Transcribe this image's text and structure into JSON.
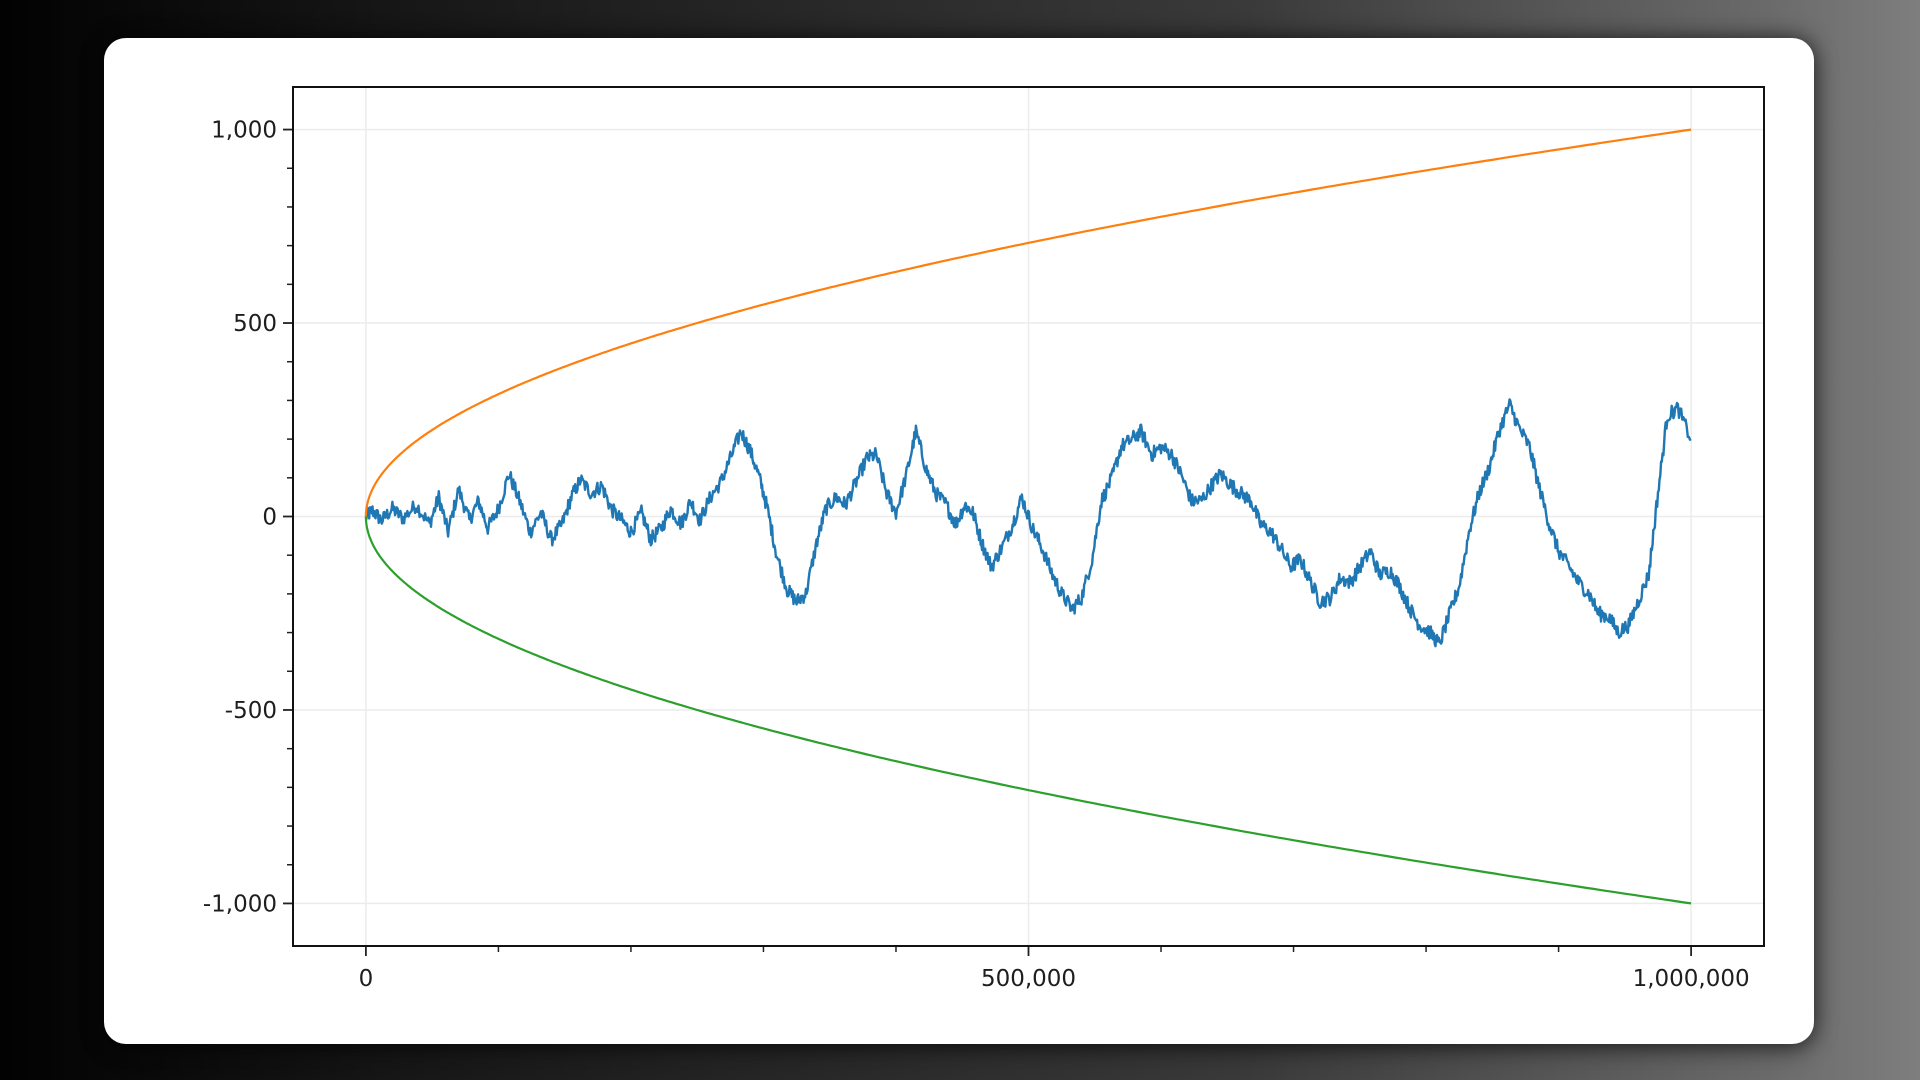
{
  "chart_data": {
    "type": "line",
    "title": "",
    "xlabel": "",
    "ylabel": "",
    "xlim": [
      -55000,
      1055000
    ],
    "ylim": [
      -1110,
      1110
    ],
    "grid": true,
    "legend": "none",
    "x_ticks": [
      0,
      500000,
      1000000
    ],
    "x_tick_labels": [
      "0",
      "500,000",
      "1,000,000"
    ],
    "y_ticks": [
      1000,
      500,
      0,
      -500,
      -1000
    ],
    "y_tick_labels": [
      "1,000",
      "500",
      "0",
      "-500",
      "-1,000"
    ],
    "series": [
      {
        "color": "#1f77b4",
        "x": [
          0,
          5000,
          12000,
          20000,
          28000,
          38000,
          48000,
          55000,
          62000,
          70000,
          78000,
          85000,
          92000,
          100000,
          108000,
          116000,
          124000,
          132000,
          140000,
          148000,
          155000,
          162000,
          170000,
          178000,
          185000,
          193000,
          200000,
          208000,
          215000,
          223000,
          230000,
          238000,
          245000,
          252000,
          260000,
          268000,
          275000,
          283000,
          290000,
          297000,
          303000,
          310000,
          318000,
          325000,
          332000,
          340000,
          347000,
          355000,
          362000,
          370000,
          378000,
          385000,
          393000,
          400000,
          408000,
          415000,
          423000,
          430000,
          438000,
          445000,
          452000,
          458000,
          465000,
          472000,
          480000,
          488000,
          495000,
          503000,
          510000,
          518000,
          525000,
          533000,
          540000,
          548000,
          555000,
          563000,
          570000,
          578000,
          585000,
          593000,
          600000,
          608000,
          615000,
          623000,
          630000,
          638000,
          645000,
          653000,
          660000,
          668000,
          675000,
          683000,
          690000,
          698000,
          705000,
          713000,
          720000,
          728000,
          735000,
          743000,
          750000,
          758000,
          765000,
          773000,
          780000,
          788000,
          795000,
          803000,
          810000,
          818000,
          825000,
          833000,
          840000,
          848000,
          855000,
          863000,
          870000,
          878000,
          885000,
          893000,
          900000,
          908000,
          915000,
          923000,
          930000,
          938000,
          945000,
          953000,
          960000,
          968000,
          975000,
          982000,
          990000,
          1000000
        ],
        "y": [
          0,
          15,
          -10,
          20,
          -5,
          30,
          -20,
          50,
          -40,
          70,
          -10,
          40,
          -30,
          20,
          110,
          40,
          -40,
          10,
          -60,
          -20,
          50,
          95,
          60,
          80,
          20,
          -10,
          -40,
          10,
          -60,
          -30,
          20,
          -20,
          40,
          -10,
          50,
          90,
          150,
          220,
          170,
          100,
          20,
          -100,
          -190,
          -220,
          -200,
          -70,
          20,
          50,
          30,
          90,
          150,
          160,
          60,
          10,
          110,
          220,
          120,
          60,
          30,
          -20,
          30,
          10,
          -70,
          -130,
          -80,
          -20,
          50,
          -30,
          -80,
          -150,
          -200,
          -240,
          -210,
          -110,
          40,
          100,
          180,
          200,
          220,
          160,
          180,
          160,
          110,
          40,
          40,
          80,
          110,
          80,
          60,
          40,
          -20,
          -40,
          -80,
          -130,
          -110,
          -170,
          -220,
          -210,
          -160,
          -170,
          -130,
          -90,
          -150,
          -140,
          -180,
          -240,
          -280,
          -300,
          -330,
          -250,
          -180,
          -30,
          60,
          130,
          220,
          290,
          230,
          180,
          80,
          -20,
          -90,
          -130,
          -170,
          -200,
          -250,
          -260,
          -300,
          -280,
          -220,
          -150,
          60,
          260,
          280,
          200
        ]
      },
      {
        "color": "#ff7f0e",
        "function": "sqrt(x)",
        "x_range": [
          0,
          1000000
        ]
      },
      {
        "color": "#2ca02c",
        "function": "-sqrt(x)",
        "x_range": [
          0,
          1000000
        ]
      }
    ]
  }
}
